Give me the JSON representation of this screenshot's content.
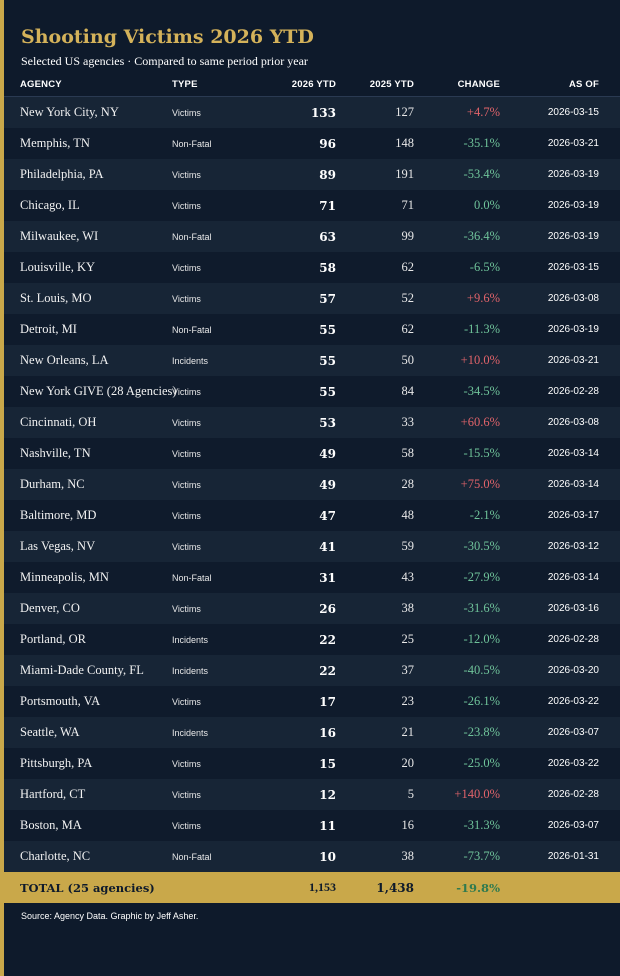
{
  "title": "Shooting Victims 2026 YTD",
  "subtitle": "Selected US agencies · Compared to same period prior year",
  "headers": {
    "agency": "AGENCY",
    "type": "TYPE",
    "ytd2026": "2026 YTD",
    "ytd2025": "2025 YTD",
    "change": "CHANGE",
    "asof": "AS OF"
  },
  "colors": {
    "background": "#0e1a2b",
    "accent_gold": "#c9a84a",
    "increase_red": "#e0636a",
    "decrease_green": "#6fc39a"
  },
  "chart_data": {
    "type": "table",
    "title": "Shooting Victims 2026 YTD",
    "subtitle": "Selected US agencies · Compared to same period prior year",
    "columns": [
      "AGENCY",
      "TYPE",
      "2026 YTD",
      "2025 YTD",
      "CHANGE",
      "AS OF"
    ],
    "rows": [
      {
        "agency": "New York City, NY",
        "type": "Victims",
        "ytd2026": "133",
        "ytd2025": "127",
        "change": "+4.7%",
        "asof": "2026-03-15"
      },
      {
        "agency": "Memphis, TN",
        "type": "Non-Fatal",
        "ytd2026": "96",
        "ytd2025": "148",
        "change": "-35.1%",
        "asof": "2026-03-21"
      },
      {
        "agency": "Philadelphia, PA",
        "type": "Victims",
        "ytd2026": "89",
        "ytd2025": "191",
        "change": "-53.4%",
        "asof": "2026-03-19"
      },
      {
        "agency": "Chicago, IL",
        "type": "Victims",
        "ytd2026": "71",
        "ytd2025": "71",
        "change": "0.0%",
        "asof": "2026-03-19"
      },
      {
        "agency": "Milwaukee, WI",
        "type": "Non-Fatal",
        "ytd2026": "63",
        "ytd2025": "99",
        "change": "-36.4%",
        "asof": "2026-03-19"
      },
      {
        "agency": "Louisville, KY",
        "type": "Victims",
        "ytd2026": "58",
        "ytd2025": "62",
        "change": "-6.5%",
        "asof": "2026-03-15"
      },
      {
        "agency": "St. Louis, MO",
        "type": "Victims",
        "ytd2026": "57",
        "ytd2025": "52",
        "change": "+9.6%",
        "asof": "2026-03-08"
      },
      {
        "agency": "Detroit, MI",
        "type": "Non-Fatal",
        "ytd2026": "55",
        "ytd2025": "62",
        "change": "-11.3%",
        "asof": "2026-03-19"
      },
      {
        "agency": "New Orleans, LA",
        "type": "Incidents",
        "ytd2026": "55",
        "ytd2025": "50",
        "change": "+10.0%",
        "asof": "2026-03-21"
      },
      {
        "agency": "New York GIVE (28 Agencies)",
        "type": "Victims",
        "ytd2026": "55",
        "ytd2025": "84",
        "change": "-34.5%",
        "asof": "2026-02-28"
      },
      {
        "agency": "Cincinnati, OH",
        "type": "Victims",
        "ytd2026": "53",
        "ytd2025": "33",
        "change": "+60.6%",
        "asof": "2026-03-08"
      },
      {
        "agency": "Nashville, TN",
        "type": "Victims",
        "ytd2026": "49",
        "ytd2025": "58",
        "change": "-15.5%",
        "asof": "2026-03-14"
      },
      {
        "agency": "Durham, NC",
        "type": "Victims",
        "ytd2026": "49",
        "ytd2025": "28",
        "change": "+75.0%",
        "asof": "2026-03-14"
      },
      {
        "agency": "Baltimore, MD",
        "type": "Victims",
        "ytd2026": "47",
        "ytd2025": "48",
        "change": "-2.1%",
        "asof": "2026-03-17"
      },
      {
        "agency": "Las Vegas, NV",
        "type": "Victims",
        "ytd2026": "41",
        "ytd2025": "59",
        "change": "-30.5%",
        "asof": "2026-03-12"
      },
      {
        "agency": "Minneapolis, MN",
        "type": "Non-Fatal",
        "ytd2026": "31",
        "ytd2025": "43",
        "change": "-27.9%",
        "asof": "2026-03-14"
      },
      {
        "agency": "Denver, CO",
        "type": "Victims",
        "ytd2026": "26",
        "ytd2025": "38",
        "change": "-31.6%",
        "asof": "2026-03-16"
      },
      {
        "agency": "Portland, OR",
        "type": "Incidents",
        "ytd2026": "22",
        "ytd2025": "25",
        "change": "-12.0%",
        "asof": "2026-02-28"
      },
      {
        "agency": "Miami-Dade County, FL",
        "type": "Incidents",
        "ytd2026": "22",
        "ytd2025": "37",
        "change": "-40.5%",
        "asof": "2026-03-20"
      },
      {
        "agency": "Portsmouth, VA",
        "type": "Victims",
        "ytd2026": "17",
        "ytd2025": "23",
        "change": "-26.1%",
        "asof": "2026-03-22"
      },
      {
        "agency": "Seattle, WA",
        "type": "Incidents",
        "ytd2026": "16",
        "ytd2025": "21",
        "change": "-23.8%",
        "asof": "2026-03-07"
      },
      {
        "agency": "Pittsburgh, PA",
        "type": "Victims",
        "ytd2026": "15",
        "ytd2025": "20",
        "change": "-25.0%",
        "asof": "2026-03-22"
      },
      {
        "agency": "Hartford, CT",
        "type": "Victims",
        "ytd2026": "12",
        "ytd2025": "5",
        "change": "+140.0%",
        "asof": "2026-02-28"
      },
      {
        "agency": "Boston, MA",
        "type": "Victims",
        "ytd2026": "11",
        "ytd2025": "16",
        "change": "-31.3%",
        "asof": "2026-03-07"
      },
      {
        "agency": "Charlotte, NC",
        "type": "Non-Fatal",
        "ytd2026": "10",
        "ytd2025": "38",
        "change": "-73.7%",
        "asof": "2026-01-31"
      }
    ],
    "total": {
      "label": "TOTAL (25 agencies)",
      "ytd2026": "1,153",
      "ytd2025": "1,438",
      "change": "-19.8%"
    }
  },
  "source": "Source: Agency Data. Graphic by Jeff Asher."
}
